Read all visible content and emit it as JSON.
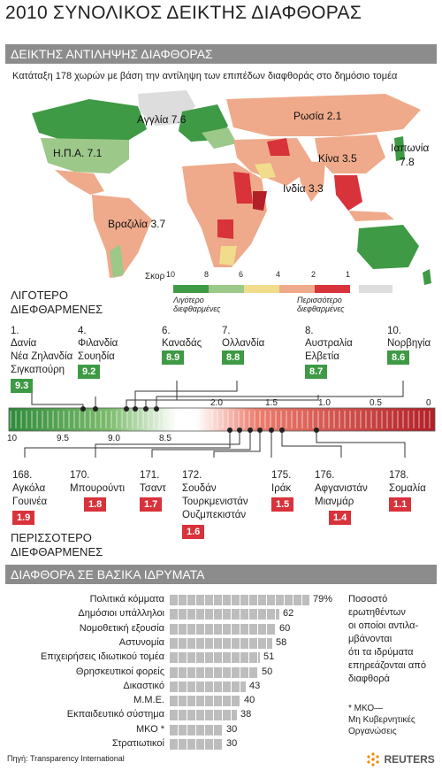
{
  "title": "2010 ΣΥΝΟΛΙΚΟΣ ΔΕΙΚΤΗΣ ΔΙΑΦΘΟΡΑΣ",
  "section1": "ΔΕΙΚΤΗΣ ΑΝΤΙΛΗΨΗΣ ΔΙΑΦΘΟΡΑΣ",
  "subtitle": "Κατάταξη 178 χωρών με βάση την αντίληψη των επιπέδων διαφθοράς στο δημόσιο τομέα",
  "map_labels": {
    "uk": "Αγγλία 7.6",
    "russia": "Ρωσία 2.1",
    "japan_1": "Ιαπωνία",
    "japan_2": "7.8",
    "usa": "Η.Π.Α. 7.1",
    "china": "Κίνα 3.5",
    "india": "Ινδία 3.3",
    "brazil": "Βραζιλία 3.7"
  },
  "legend": {
    "label": "Σκορ",
    "ticks": [
      "10",
      "8",
      "6",
      "4",
      "2",
      "1"
    ],
    "less": "Λιγότερο διεφθαρμένες",
    "more": "Περισσότερο διεφθαρμένες",
    "colors": [
      "#3e9a44",
      "#9cc88a",
      "#f1dc8c",
      "#eeaa8a",
      "#d8323b",
      "#b21f27",
      "#dddddd"
    ]
  },
  "less_header_1": "ΛΙΓΟΤΕΡΟ",
  "less_header_2": "ΔΙΕΦΘΑΡΜΕΝΕΣ",
  "more_header_1": "ΠΕΡΙΣΣΟΤΕΡΟ",
  "more_header_2": "ΔΙΕΦΘΑΡΜΕΝΕΣ",
  "top_groups": [
    {
      "rank": "1.",
      "names": [
        "Δανία",
        "Νέα Ζηλανδία",
        "Σιγκαπούρη"
      ],
      "score": "9.3"
    },
    {
      "rank": "4.",
      "names": [
        "Φιλανδία",
        "Σουηδία"
      ],
      "score": "9.2"
    },
    {
      "rank": "6.",
      "names": [
        "Καναδάς"
      ],
      "score": "8.9"
    },
    {
      "rank": "7.",
      "names": [
        "Ολλανδία"
      ],
      "score": "8.8"
    },
    {
      "rank": "8.",
      "names": [
        "Αυστραλία",
        "Ελβετία"
      ],
      "score": "8.7"
    },
    {
      "rank": "10.",
      "names": [
        "Νορβηγία"
      ],
      "score": "8.6"
    }
  ],
  "bottom_groups": [
    {
      "rank": "168.",
      "names": [
        "Αγκόλα",
        "Γουινέα"
      ],
      "score": "1.9"
    },
    {
      "rank": "170.",
      "names": [
        "Μπουρούντι"
      ],
      "score": "1.8"
    },
    {
      "rank": "171.",
      "names": [
        "Τσαντ"
      ],
      "score": "1.7"
    },
    {
      "rank": "172.",
      "names": [
        "Σουδάν",
        "Τουρκμενιστάν",
        "Ουζμπεκιστάν"
      ],
      "score": "1.6"
    },
    {
      "rank": "175.",
      "names": [
        "Ιράκ"
      ],
      "score": "1.5"
    },
    {
      "rank": "176.",
      "names": [
        "Αφγανιστάν",
        "Μιανμάρ"
      ],
      "score": "1.4"
    },
    {
      "rank": "178.",
      "names": [
        "Σομαλία"
      ],
      "score": "1.1"
    }
  ],
  "scale_left": [
    "10",
    "9.5",
    "9.0",
    "8.5"
  ],
  "scale_right": [
    "2.0",
    "1.5",
    "1.0",
    "0.5",
    "0"
  ],
  "section2": "ΔΙΑΦΘΟΡΑ ΣΕ ΒΑΣΙΚΑ ΙΔΡΥΜΑΤΑ",
  "chart_data": {
    "type": "bar",
    "categories": [
      "Πολιτικά κόμματα",
      "Δημόσιοι υπάλληλοι",
      "Νομοθετική εξουσία",
      "Αστυνομία",
      "Επιχειρήσεις ιδιωτικού τομέα",
      "Θρησκευτικοί φορείς",
      "Δικαστικό",
      "Μ.Μ.Ε.",
      "Εκπαιδευτικό σύστημα",
      "ΜΚΟ *",
      "Στρατιωτικοί"
    ],
    "values": [
      79,
      62,
      60,
      58,
      51,
      50,
      43,
      40,
      38,
      30,
      30
    ],
    "value_labels": [
      "79%",
      "62",
      "60",
      "58",
      "51",
      "50",
      "43",
      "40",
      "38",
      "30",
      "30"
    ],
    "xlim": [
      0,
      100
    ],
    "bar_color": "#bdbdbd"
  },
  "note_lines": [
    "Ποσοστό",
    "ερωτηθέντων",
    "οι οποίοι αντιλα-",
    "μβάνονται",
    "ότι τα ιδρύματα",
    "επηρεάζονται από",
    "διαφθορά"
  ],
  "footnote_1": "* ΜΚΟ—",
  "footnote_2": "Μη Κυβερνητικές",
  "footnote_3": "Οργανώσεις",
  "source": "Πηγή: Transparency International",
  "brand": "REUTERS"
}
